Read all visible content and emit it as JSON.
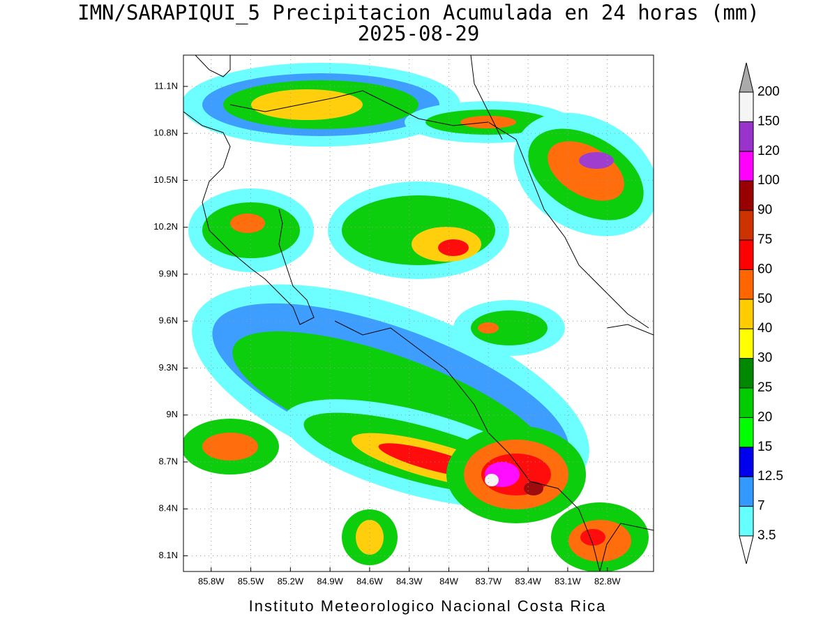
{
  "header": {
    "title": "IMN/SARAPIQUI_5 Precipitacion Acumulada en 24 horas (mm)",
    "date": "2025-08-29"
  },
  "map": {
    "lon_range": [
      -86.01,
      -82.45
    ],
    "lat_range": [
      8.0,
      11.3
    ],
    "lon_ticks": [
      {
        "value": -85.8,
        "label": "85.8W"
      },
      {
        "value": -85.5,
        "label": "85.5W"
      },
      {
        "value": -85.2,
        "label": "85.2W"
      },
      {
        "value": -84.9,
        "label": "84.9W"
      },
      {
        "value": -84.6,
        "label": "84.6W"
      },
      {
        "value": -84.3,
        "label": "84.3W"
      },
      {
        "value": -84.0,
        "label": "84W"
      },
      {
        "value": -83.7,
        "label": "83.7W"
      },
      {
        "value": -83.4,
        "label": "83.4W"
      },
      {
        "value": -83.1,
        "label": "83.1W"
      },
      {
        "value": -82.8,
        "label": "82.8W"
      }
    ],
    "lat_ticks": [
      {
        "value": 8.1,
        "label": "8.1N"
      },
      {
        "value": 8.4,
        "label": "8.4N"
      },
      {
        "value": 8.7,
        "label": "8.7N"
      },
      {
        "value": 9.0,
        "label": "9N"
      },
      {
        "value": 9.3,
        "label": "9.3N"
      },
      {
        "value": 9.6,
        "label": "9.6N"
      },
      {
        "value": 9.9,
        "label": "9.9N"
      },
      {
        "value": 10.2,
        "label": "10.2N"
      },
      {
        "value": 10.5,
        "label": "10.5N"
      },
      {
        "value": 10.8,
        "label": "10.8N"
      },
      {
        "value": 11.1,
        "label": "11.1N"
      }
    ],
    "grid": true
  },
  "colorbar": {
    "levels": [
      3.5,
      7,
      12.5,
      15,
      20,
      25,
      30,
      40,
      50,
      60,
      75,
      90,
      100,
      120,
      150,
      200
    ],
    "colors": [
      "#66ffff",
      "#3399ff",
      "#0000ee",
      "#00ff00",
      "#00cc00",
      "#008800",
      "#ffff00",
      "#ffcc00",
      "#ff6600",
      "#ff0000",
      "#cc3300",
      "#990000",
      "#ff00ff",
      "#9933cc",
      "#f5f5f5"
    ],
    "under_color": "#ffffff",
    "over_color": "#aaaaaa"
  },
  "footer": "Instituto Meteorologico Nacional Costa Rica"
}
